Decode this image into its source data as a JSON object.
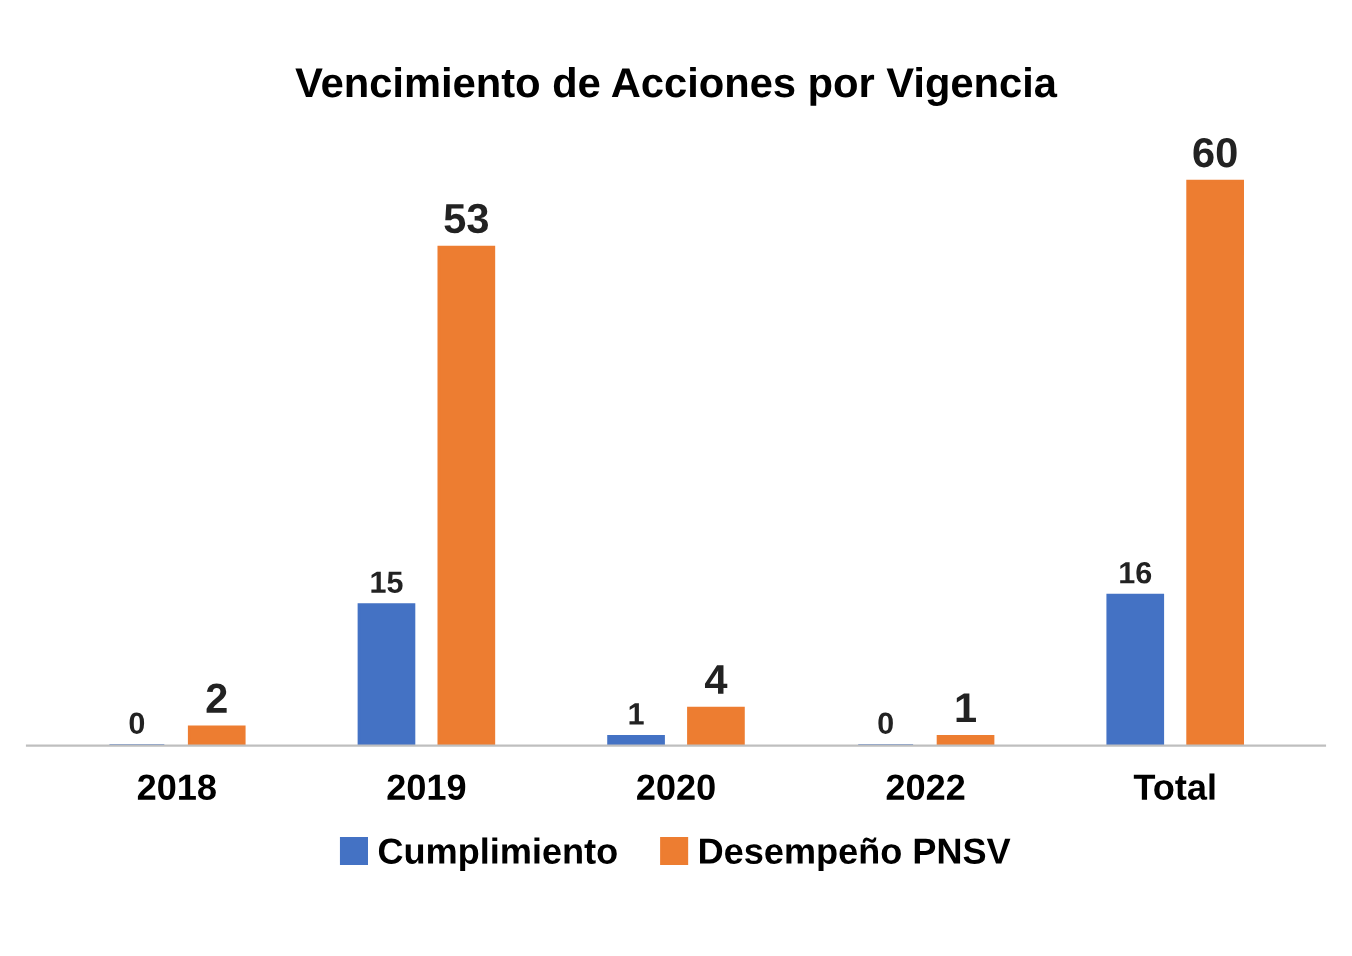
{
  "chart_data": {
    "type": "bar",
    "title": "Vencimiento de Acciones por Vigencia",
    "categories": [
      "2018",
      "2019",
      "2020",
      "2022",
      "Total"
    ],
    "series": [
      {
        "name": "Cumplimiento",
        "color": "#4472c4",
        "values": [
          0,
          15,
          1,
          0,
          16
        ]
      },
      {
        "name": "Desempeño PNSV",
        "color": "#ed7d31",
        "values": [
          2,
          53,
          4,
          1,
          60
        ]
      }
    ],
    "data_labels": true,
    "legend": "bottom",
    "grid": false,
    "tick_labels": "x"
  }
}
